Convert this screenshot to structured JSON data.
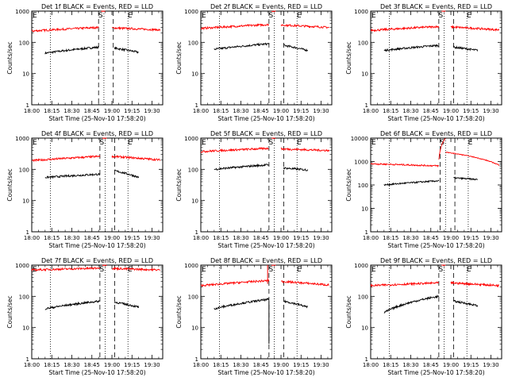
{
  "figure": {
    "xlabel": "Start Time (25-Nov-10 17:58:20)",
    "ylabel": "Counts/sec",
    "colors": {
      "events": "#000000",
      "lld": "#ff0000",
      "axis": "#000000",
      "background": "#ffffff"
    },
    "marker_labels": [
      "E",
      "S",
      "E"
    ]
  },
  "chart_data": [
    {
      "type": "line",
      "title": "Det 1f BLACK = Events, RED = LLD",
      "x_ticks": [
        "18:00",
        "18:15",
        "18:30",
        "18:45",
        "19:00",
        "19:15",
        "19:30"
      ],
      "y_scale": "log",
      "ylim": [
        1,
        1000
      ],
      "y_ticks": [
        "1",
        "10",
        "100",
        "1000"
      ],
      "markers": {
        "E_start": "18:00",
        "S": "18:51",
        "E_end": "19:13"
      },
      "dotted_lines": [
        "18:14",
        "18:54",
        "19:12"
      ],
      "dashed_lines": [
        "18:50",
        "19:01"
      ],
      "series": [
        {
          "name": "Events",
          "segments": [
            {
              "x": [
                "18:10",
                "18:50"
              ],
              "level": [
                45,
                70
              ]
            },
            {
              "x": [
                "19:02",
                "19:20"
              ],
              "level": [
                65,
                48
              ]
            }
          ]
        },
        {
          "name": "LLD",
          "segments": [
            {
              "x": [
                "18:00",
                "18:50"
              ],
              "level": [
                230,
                300
              ]
            },
            {
              "x": [
                "18:52",
                "18:55"
              ],
              "level": [
                1000,
                1000
              ]
            },
            {
              "x": [
                "19:00",
                "19:36"
              ],
              "level": [
                290,
                250
              ]
            }
          ]
        }
      ]
    },
    {
      "type": "line",
      "title": "Det 2f BLACK = Events, RED = LLD",
      "x_ticks": [
        "18:00",
        "18:15",
        "18:30",
        "18:45",
        "19:00",
        "19:15",
        "19:30"
      ],
      "y_scale": "log",
      "ylim": [
        1,
        1000
      ],
      "y_ticks": [
        "1",
        "10",
        "100",
        "1000"
      ],
      "markers": {
        "E_start": "18:00",
        "S": "18:52",
        "E_end": "19:13"
      },
      "series": [
        {
          "name": "Events",
          "segments": [
            {
              "x": [
                "18:10",
                "18:51"
              ],
              "level": [
                60,
                90
              ]
            },
            {
              "x": [
                "19:02",
                "19:20"
              ],
              "level": [
                80,
                55
              ]
            }
          ]
        },
        {
          "name": "LLD",
          "segments": [
            {
              "x": [
                "18:00",
                "18:51"
              ],
              "level": [
                280,
                370
              ]
            },
            {
              "x": [
                "18:53",
                "18:56"
              ],
              "level": [
                1000,
                1000
              ]
            },
            {
              "x": [
                "19:00",
                "19:36"
              ],
              "level": [
                360,
                300
              ]
            }
          ]
        }
      ]
    },
    {
      "type": "line",
      "title": "Det 3f BLACK = Events, RED = LLD",
      "x_ticks": [
        "18:00",
        "18:15",
        "18:30",
        "18:45",
        "19:00",
        "19:15",
        "19:30"
      ],
      "y_scale": "log",
      "ylim": [
        1,
        1000
      ],
      "y_ticks": [
        "1",
        "10",
        "100",
        "1000"
      ],
      "markers": {
        "E_start": "18:00",
        "S": "18:52",
        "E_end": "19:13"
      },
      "series": [
        {
          "name": "Events",
          "segments": [
            {
              "x": [
                "18:10",
                "18:51"
              ],
              "level": [
                55,
                80
              ]
            },
            {
              "x": [
                "19:02",
                "19:20"
              ],
              "level": [
                70,
                55
              ]
            }
          ]
        },
        {
          "name": "LLD",
          "segments": [
            {
              "x": [
                "18:00",
                "18:51"
              ],
              "level": [
                240,
                320
              ]
            },
            {
              "x": [
                "18:53",
                "18:56"
              ],
              "level": [
                1000,
                1000
              ]
            },
            {
              "x": [
                "19:00",
                "19:36"
              ],
              "level": [
                310,
                250
              ]
            }
          ]
        }
      ]
    },
    {
      "type": "line",
      "title": "Det 4f BLACK = Events, RED = LLD",
      "x_ticks": [
        "18:00",
        "18:15",
        "18:30",
        "18:45",
        "19:00",
        "19:15",
        "19:30"
      ],
      "y_scale": "log",
      "ylim": [
        1,
        1000
      ],
      "y_ticks": [
        "1",
        "10",
        "100",
        "1000"
      ],
      "markers": {
        "E_start": "18:00",
        "S": "18:52",
        "E_end": "19:13"
      },
      "series": [
        {
          "name": "Events",
          "segments": [
            {
              "x": [
                "18:10",
                "18:51"
              ],
              "level": [
                55,
                70
              ]
            },
            {
              "x": [
                "19:02",
                "19:20"
              ],
              "level": [
                90,
                55
              ]
            }
          ]
        },
        {
          "name": "LLD",
          "segments": [
            {
              "x": [
                "18:00",
                "18:51"
              ],
              "level": [
                190,
                260
              ]
            },
            {
              "x": [
                "18:53",
                "18:56"
              ],
              "level": [
                1000,
                1000
              ]
            },
            {
              "x": [
                "19:00",
                "19:36"
              ],
              "level": [
                260,
                200
              ]
            }
          ]
        }
      ]
    },
    {
      "type": "line",
      "title": "Det 5f BLACK = Events, RED = LLD",
      "x_ticks": [
        "18:00",
        "18:15",
        "18:30",
        "18:45",
        "19:00",
        "19:15",
        "19:30"
      ],
      "y_scale": "log",
      "ylim": [
        1,
        1000
      ],
      "y_ticks": [
        "1",
        "10",
        "100",
        "1000"
      ],
      "markers": {
        "E_start": "18:00",
        "S": "18:52",
        "E_end": "19:13"
      },
      "series": [
        {
          "name": "Events",
          "segments": [
            {
              "x": [
                "18:10",
                "18:51"
              ],
              "level": [
                100,
                140
              ]
            },
            {
              "x": [
                "19:02",
                "19:20"
              ],
              "level": [
                110,
                95
              ]
            }
          ]
        },
        {
          "name": "LLD",
          "segments": [
            {
              "x": [
                "18:00",
                "18:51"
              ],
              "level": [
                370,
                470
              ]
            },
            {
              "x": [
                "18:53",
                "18:56"
              ],
              "level": [
                1000,
                1000
              ]
            },
            {
              "x": [
                "19:00",
                "19:36"
              ],
              "level": [
                450,
                400
              ]
            }
          ]
        }
      ]
    },
    {
      "type": "line",
      "title": "Det 6f BLACK = Events, RED = LLD",
      "x_ticks": [
        "18:00",
        "18:15",
        "18:30",
        "18:45",
        "19:00",
        "19:15",
        "19:30"
      ],
      "y_scale": "log",
      "ylim": [
        1,
        10000
      ],
      "y_ticks": [
        "1",
        "10",
        "100",
        "1000",
        "10000"
      ],
      "markers": {
        "E_start": "18:00",
        "S": "18:53",
        "E_end": "19:14"
      },
      "series": [
        {
          "name": "Events",
          "segments": [
            {
              "x": [
                "18:10",
                "18:51"
              ],
              "level": [
                100,
                150
              ]
            },
            {
              "x": [
                "19:02",
                "19:20"
              ],
              "level": [
                200,
                170
              ]
            }
          ]
        },
        {
          "name": "LLD",
          "segments": [
            {
              "x": [
                "18:00",
                "18:51"
              ],
              "level": [
                800,
                650
              ]
            },
            {
              "x": [
                "18:51",
                "18:56"
              ],
              "level": [
                1200,
                10000
              ]
            },
            {
              "x": [
                "18:56",
                "19:36"
              ],
              "level": [
                2500,
                700
              ]
            }
          ]
        }
      ]
    },
    {
      "type": "line",
      "title": "Det 7f BLACK = Events, RED = LLD",
      "x_ticks": [
        "18:00",
        "18:15",
        "18:30",
        "18:45",
        "19:00",
        "19:15",
        "19:30"
      ],
      "y_scale": "log",
      "ylim": [
        1,
        1000
      ],
      "y_ticks": [
        "1",
        "10",
        "100",
        "1000"
      ],
      "markers": {
        "E_start": "18:00",
        "S": "18:52",
        "E_end": "19:13"
      },
      "series": [
        {
          "name": "Events",
          "segments": [
            {
              "x": [
                "18:10",
                "18:51"
              ],
              "level": [
                40,
                70
              ]
            },
            {
              "x": [
                "19:02",
                "19:20"
              ],
              "level": [
                65,
                45
              ]
            }
          ]
        },
        {
          "name": "LLD",
          "segments": [
            {
              "x": [
                "18:00",
                "18:51"
              ],
              "level": [
                700,
                800
              ]
            },
            {
              "x": [
                "18:53",
                "18:56"
              ],
              "level": [
                1000,
                1000
              ]
            },
            {
              "x": [
                "19:00",
                "19:36"
              ],
              "level": [
                780,
                700
              ]
            }
          ]
        }
      ]
    },
    {
      "type": "line",
      "title": "Det 8f BLACK = Events, RED = LLD",
      "x_ticks": [
        "18:00",
        "18:15",
        "18:30",
        "18:45",
        "19:00",
        "19:15",
        "19:30"
      ],
      "y_scale": "log",
      "ylim": [
        1,
        1000
      ],
      "y_ticks": [
        "1",
        "10",
        "100",
        "1000"
      ],
      "markers": {
        "E_start": "18:00",
        "S": "18:52",
        "E_end": "19:13"
      },
      "series": [
        {
          "name": "Events",
          "segments": [
            {
              "x": [
                "18:10",
                "18:51"
              ],
              "level": [
                40,
                80
              ]
            },
            {
              "x": [
                "19:02",
                "19:20"
              ],
              "level": [
                70,
                45
              ]
            }
          ]
        },
        {
          "name": "LLD",
          "segments": [
            {
              "x": [
                "18:00",
                "18:51"
              ],
              "level": [
                220,
                320
              ]
            },
            {
              "x": [
                "18:53",
                "18:56"
              ],
              "level": [
                1000,
                1000
              ]
            },
            {
              "x": [
                "19:00",
                "19:36"
              ],
              "level": [
                300,
                230
              ]
            }
          ]
        }
      ]
    },
    {
      "type": "line",
      "title": "Det 9f BLACK = Events, RED = LLD",
      "x_ticks": [
        "18:00",
        "18:15",
        "18:30",
        "18:45",
        "19:00",
        "19:15",
        "19:30"
      ],
      "y_scale": "log",
      "ylim": [
        1,
        1000
      ],
      "y_ticks": [
        "1",
        "10",
        "100",
        "1000"
      ],
      "markers": {
        "E_start": "18:00",
        "S": "18:52",
        "E_end": "19:13"
      },
      "series": [
        {
          "name": "Events",
          "segments": [
            {
              "x": [
                "18:10",
                "18:51"
              ],
              "level": [
                30,
                100
              ]
            },
            {
              "x": [
                "19:02",
                "19:20"
              ],
              "level": [
                70,
                50
              ]
            }
          ]
        },
        {
          "name": "LLD",
          "segments": [
            {
              "x": [
                "18:00",
                "18:51"
              ],
              "level": [
                220,
                270
              ]
            },
            {
              "x": [
                "18:53",
                "18:56"
              ],
              "level": [
                1000,
                1000
              ]
            },
            {
              "x": [
                "19:00",
                "19:36"
              ],
              "level": [
                270,
                220
              ]
            }
          ]
        }
      ]
    }
  ]
}
